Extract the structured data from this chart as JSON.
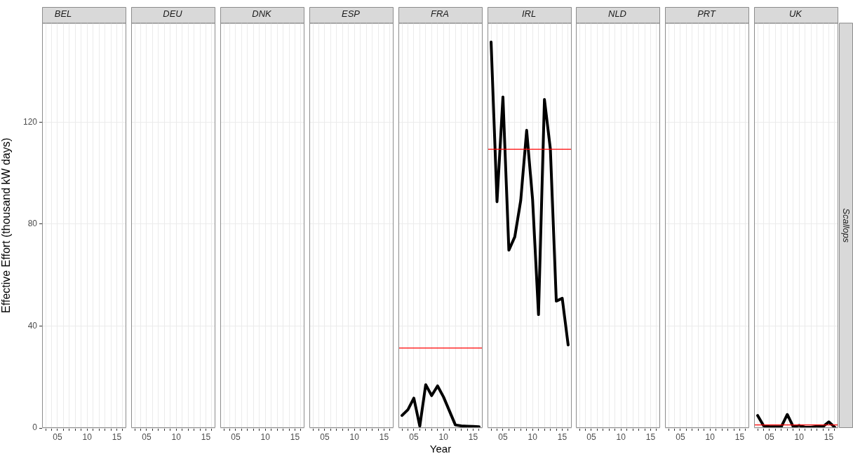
{
  "chart_data": [
    {
      "type": "line",
      "title": "BEL",
      "ylabel": "Effective Effort (thousand kW days)",
      "xlim": [
        2002.4,
        2016.6
      ],
      "xticks": [
        {
          "value": 2003,
          "label": null
        },
        {
          "value": 2004,
          "label": null
        },
        {
          "value": 2005,
          "label": "05"
        },
        {
          "value": 2006,
          "label": null
        },
        {
          "value": 2007,
          "label": null
        },
        {
          "value": 2008,
          "label": null
        },
        {
          "value": 2009,
          "label": null
        },
        {
          "value": 2010,
          "label": "10"
        },
        {
          "value": 2011,
          "label": null
        },
        {
          "value": 2012,
          "label": null
        },
        {
          "value": 2013,
          "label": null
        },
        {
          "value": 2014,
          "label": null
        },
        {
          "value": 2015,
          "label": "15"
        },
        {
          "value": 2016,
          "label": null
        }
      ],
      "ylim": [
        0,
        159
      ],
      "yticks": [
        0,
        40,
        80,
        120
      ],
      "grid": true
    },
    {
      "type": "line",
      "title": "DEU",
      "xlim": [
        2002.4,
        2016.6
      ],
      "xticks": [
        {
          "value": 2003,
          "label": null
        },
        {
          "value": 2004,
          "label": null
        },
        {
          "value": 2005,
          "label": "05"
        },
        {
          "value": 2006,
          "label": null
        },
        {
          "value": 2007,
          "label": null
        },
        {
          "value": 2008,
          "label": null
        },
        {
          "value": 2009,
          "label": null
        },
        {
          "value": 2010,
          "label": "10"
        },
        {
          "value": 2011,
          "label": null
        },
        {
          "value": 2012,
          "label": null
        },
        {
          "value": 2013,
          "label": null
        },
        {
          "value": 2014,
          "label": null
        },
        {
          "value": 2015,
          "label": "15"
        },
        {
          "value": 2016,
          "label": null
        }
      ],
      "ylim": [
        0,
        159
      ],
      "yticks": [
        0,
        40,
        80,
        120
      ],
      "tick_labels": "x",
      "grid": true
    },
    {
      "type": "line",
      "title": "DNK",
      "xlim": [
        2002.4,
        2016.6
      ],
      "xticks": [
        {
          "value": 2003,
          "label": null
        },
        {
          "value": 2004,
          "label": null
        },
        {
          "value": 2005,
          "label": "05"
        },
        {
          "value": 2006,
          "label": null
        },
        {
          "value": 2007,
          "label": null
        },
        {
          "value": 2008,
          "label": null
        },
        {
          "value": 2009,
          "label": null
        },
        {
          "value": 2010,
          "label": "10"
        },
        {
          "value": 2011,
          "label": null
        },
        {
          "value": 2012,
          "label": null
        },
        {
          "value": 2013,
          "label": null
        },
        {
          "value": 2014,
          "label": null
        },
        {
          "value": 2015,
          "label": "15"
        },
        {
          "value": 2016,
          "label": null
        }
      ],
      "ylim": [
        0,
        159
      ],
      "yticks": [
        0,
        40,
        80,
        120
      ],
      "tick_labels": "x",
      "grid": true
    },
    {
      "type": "line",
      "title": "ESP",
      "xlim": [
        2002.4,
        2016.6
      ],
      "xticks": [
        {
          "value": 2003,
          "label": null
        },
        {
          "value": 2004,
          "label": null
        },
        {
          "value": 2005,
          "label": "05"
        },
        {
          "value": 2006,
          "label": null
        },
        {
          "value": 2007,
          "label": null
        },
        {
          "value": 2008,
          "label": null
        },
        {
          "value": 2009,
          "label": null
        },
        {
          "value": 2010,
          "label": "10"
        },
        {
          "value": 2011,
          "label": null
        },
        {
          "value": 2012,
          "label": null
        },
        {
          "value": 2013,
          "label": null
        },
        {
          "value": 2014,
          "label": null
        },
        {
          "value": 2015,
          "label": "15"
        },
        {
          "value": 2016,
          "label": null
        }
      ],
      "ylim": [
        0,
        159
      ],
      "yticks": [
        0,
        40,
        80,
        120
      ],
      "tick_labels": "x",
      "grid": true
    },
    {
      "type": "line",
      "title": "FRA",
      "xlabel": "Year",
      "xlim": [
        2002.4,
        2016.6
      ],
      "xticks": [
        {
          "value": 2003,
          "label": null
        },
        {
          "value": 2004,
          "label": null
        },
        {
          "value": 2005,
          "label": "05"
        },
        {
          "value": 2006,
          "label": null
        },
        {
          "value": 2007,
          "label": null
        },
        {
          "value": 2008,
          "label": null
        },
        {
          "value": 2009,
          "label": null
        },
        {
          "value": 2010,
          "label": "10"
        },
        {
          "value": 2011,
          "label": null
        },
        {
          "value": 2012,
          "label": null
        },
        {
          "value": 2013,
          "label": null
        },
        {
          "value": 2014,
          "label": null
        },
        {
          "value": 2015,
          "label": "15"
        },
        {
          "value": 2016,
          "label": null
        }
      ],
      "ylim": [
        0,
        159
      ],
      "yticks": [
        0,
        40,
        80,
        120
      ],
      "tick_labels": "x",
      "grid": true,
      "marker": "none",
      "ref_lines": [
        {
          "axis": "y",
          "value": 31.4,
          "color": "#ff0000"
        }
      ],
      "x": [
        2003,
        2004,
        2005,
        2006,
        2007,
        2008,
        2009,
        2010,
        2011,
        2012,
        2013,
        2014,
        2015,
        2016
      ],
      "series": [
        {
          "color": "#000000",
          "values": [
            4.9,
            7.2,
            11.7,
            0.7,
            17,
            12.7,
            16.5,
            12.2,
            6.7,
            1.2,
            0.8,
            0.7,
            0.6,
            0.5
          ]
        }
      ]
    },
    {
      "type": "line",
      "title": "IRL",
      "xlim": [
        2002.4,
        2016.6
      ],
      "xticks": [
        {
          "value": 2003,
          "label": null
        },
        {
          "value": 2004,
          "label": null
        },
        {
          "value": 2005,
          "label": "05"
        },
        {
          "value": 2006,
          "label": null
        },
        {
          "value": 2007,
          "label": null
        },
        {
          "value": 2008,
          "label": null
        },
        {
          "value": 2009,
          "label": null
        },
        {
          "value": 2010,
          "label": "10"
        },
        {
          "value": 2011,
          "label": null
        },
        {
          "value": 2012,
          "label": null
        },
        {
          "value": 2013,
          "label": null
        },
        {
          "value": 2014,
          "label": null
        },
        {
          "value": 2015,
          "label": "15"
        },
        {
          "value": 2016,
          "label": null
        }
      ],
      "ylim": [
        0,
        159
      ],
      "yticks": [
        0,
        40,
        80,
        120
      ],
      "tick_labels": "x",
      "grid": true,
      "marker": "none",
      "ref_lines": [
        {
          "axis": "y",
          "value": 109.4,
          "color": "#ff0000"
        }
      ],
      "x": [
        2003,
        2004,
        2005,
        2006,
        2007,
        2008,
        2009,
        2010,
        2011,
        2012,
        2013,
        2014,
        2015,
        2016
      ],
      "series": [
        {
          "color": "#000000",
          "values": [
            151.5,
            88.8,
            129.9,
            69.8,
            75,
            89.3,
            116.8,
            89.7,
            44.5,
            128.9,
            109.5,
            49.8,
            50.9,
            32.6
          ]
        }
      ]
    },
    {
      "type": "line",
      "title": "NLD",
      "xlim": [
        2002.4,
        2016.6
      ],
      "xticks": [
        {
          "value": 2003,
          "label": null
        },
        {
          "value": 2004,
          "label": null
        },
        {
          "value": 2005,
          "label": "05"
        },
        {
          "value": 2006,
          "label": null
        },
        {
          "value": 2007,
          "label": null
        },
        {
          "value": 2008,
          "label": null
        },
        {
          "value": 2009,
          "label": null
        },
        {
          "value": 2010,
          "label": "10"
        },
        {
          "value": 2011,
          "label": null
        },
        {
          "value": 2012,
          "label": null
        },
        {
          "value": 2013,
          "label": null
        },
        {
          "value": 2014,
          "label": null
        },
        {
          "value": 2015,
          "label": "15"
        },
        {
          "value": 2016,
          "label": null
        }
      ],
      "ylim": [
        0,
        159
      ],
      "yticks": [
        0,
        40,
        80,
        120
      ],
      "tick_labels": "x",
      "grid": true
    },
    {
      "type": "line",
      "title": "PRT",
      "xlim": [
        2002.4,
        2016.6
      ],
      "xticks": [
        {
          "value": 2003,
          "label": null
        },
        {
          "value": 2004,
          "label": null
        },
        {
          "value": 2005,
          "label": "05"
        },
        {
          "value": 2006,
          "label": null
        },
        {
          "value": 2007,
          "label": null
        },
        {
          "value": 2008,
          "label": null
        },
        {
          "value": 2009,
          "label": null
        },
        {
          "value": 2010,
          "label": "10"
        },
        {
          "value": 2011,
          "label": null
        },
        {
          "value": 2012,
          "label": null
        },
        {
          "value": 2013,
          "label": null
        },
        {
          "value": 2014,
          "label": null
        },
        {
          "value": 2015,
          "label": "15"
        },
        {
          "value": 2016,
          "label": null
        }
      ],
      "ylim": [
        0,
        159
      ],
      "yticks": [
        0,
        40,
        80,
        120
      ],
      "tick_labels": "x",
      "grid": true
    },
    {
      "type": "line",
      "title": "UK",
      "annotations": [
        "Scallops"
      ],
      "xlim": [
        2002.4,
        2016.6
      ],
      "xticks": [
        {
          "value": 2003,
          "label": null
        },
        {
          "value": 2004,
          "label": null
        },
        {
          "value": 2005,
          "label": "05"
        },
        {
          "value": 2006,
          "label": null
        },
        {
          "value": 2007,
          "label": null
        },
        {
          "value": 2008,
          "label": null
        },
        {
          "value": 2009,
          "label": null
        },
        {
          "value": 2010,
          "label": "10"
        },
        {
          "value": 2011,
          "label": null
        },
        {
          "value": 2012,
          "label": null
        },
        {
          "value": 2013,
          "label": null
        },
        {
          "value": 2014,
          "label": null
        },
        {
          "value": 2015,
          "label": "15"
        },
        {
          "value": 2016,
          "label": null
        }
      ],
      "ylim": [
        0,
        159
      ],
      "yticks": [
        0,
        40,
        80,
        120
      ],
      "tick_labels": "x",
      "grid": true,
      "marker": "none",
      "ref_lines": [
        {
          "axis": "y",
          "value": 1.2,
          "color": "#ff0000"
        }
      ],
      "x": [
        2003,
        2004,
        2005,
        2006,
        2007,
        2008,
        2009,
        2010,
        2011,
        2012,
        2013,
        2014,
        2015,
        2016
      ],
      "series": [
        {
          "color": "#000000",
          "values": [
            4.9,
            0.9,
            0.5,
            0.5,
            0.5,
            5.3,
            0.5,
            1,
            0.3,
            0.3,
            0.6,
            0.5,
            2.4,
            0.3
          ]
        }
      ]
    }
  ]
}
